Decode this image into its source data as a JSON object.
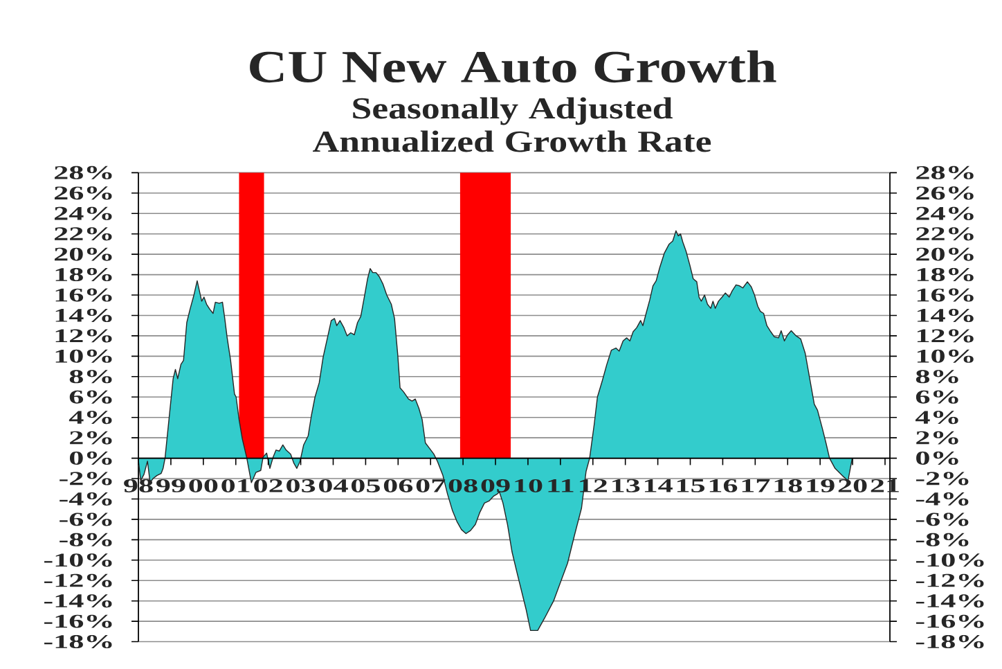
{
  "chart_data": {
    "type": "area",
    "title": "CU New Auto Growth",
    "subtitle": "Seasonally Adjusted Annualized Growth Rate",
    "x": [
      1998.0,
      1998.07,
      1998.17,
      1998.28,
      1998.36,
      1998.45,
      1998.57,
      1998.7,
      1998.76,
      1998.82,
      1998.97,
      1999.07,
      1999.14,
      1999.21,
      1999.31,
      1999.39,
      1999.49,
      1999.59,
      1999.71,
      1999.81,
      1999.88,
      1999.95,
      2000.02,
      2000.1,
      2000.2,
      2000.3,
      2000.37,
      2000.49,
      2000.59,
      2000.66,
      2000.73,
      2000.84,
      2000.96,
      2001.01,
      2001.1,
      2001.2,
      2001.34,
      2001.48,
      2001.62,
      2001.77,
      2001.84,
      2001.95,
      2002.05,
      2002.15,
      2002.24,
      2002.34,
      2002.45,
      2002.55,
      2002.69,
      2002.79,
      2002.88,
      2002.98,
      2003.09,
      2003.23,
      2003.33,
      2003.44,
      2003.57,
      2003.69,
      2003.83,
      2003.94,
      2004.04,
      2004.11,
      2004.21,
      2004.33,
      2004.43,
      2004.54,
      2004.65,
      2004.75,
      2004.85,
      2004.97,
      2005.06,
      2005.14,
      2005.22,
      2005.32,
      2005.42,
      2005.53,
      2005.65,
      2005.79,
      2005.89,
      2005.99,
      2006.06,
      2006.17,
      2006.32,
      2006.43,
      2006.53,
      2006.64,
      2006.74,
      2006.84,
      2006.96,
      2007.1,
      2007.21,
      2007.38,
      2007.52,
      2007.67,
      2007.81,
      2007.95,
      2008.09,
      2008.23,
      2008.38,
      2008.52,
      2008.66,
      2008.8,
      2008.95,
      2009.06,
      2009.12,
      2009.23,
      2009.37,
      2009.51,
      2009.66,
      2009.8,
      2009.94,
      2010.08,
      2010.3,
      2010.51,
      2010.79,
      2011.01,
      2011.22,
      2011.43,
      2011.65,
      2011.79,
      2011.9,
      2012.04,
      2012.14,
      2012.29,
      2012.43,
      2012.57,
      2012.71,
      2012.81,
      2012.93,
      2013.04,
      2013.14,
      2013.24,
      2013.35,
      2013.47,
      2013.54,
      2013.64,
      2013.75,
      2013.85,
      2013.95,
      2014.06,
      2014.2,
      2014.35,
      2014.46,
      2014.56,
      2014.63,
      2014.7,
      2014.77,
      2014.87,
      2014.99,
      2015.09,
      2015.2,
      2015.27,
      2015.34,
      2015.44,
      2015.53,
      2015.63,
      2015.7,
      2015.77,
      2015.87,
      2015.98,
      2016.08,
      2016.2,
      2016.29,
      2016.41,
      2016.52,
      2016.62,
      2016.76,
      2016.88,
      2016.98,
      2017.08,
      2017.16,
      2017.26,
      2017.36,
      2017.48,
      2017.59,
      2017.72,
      2017.8,
      2017.9,
      2018.0,
      2018.11,
      2018.26,
      2018.4,
      2018.54,
      2018.68,
      2018.82,
      2018.92,
      2019.07,
      2019.18,
      2019.29,
      2019.46,
      2019.68,
      2019.86,
      2019.93,
      2019.99
    ],
    "series": [
      {
        "color": "#33cccc",
        "values": [
          -0.2,
          -2.2,
          -1.6,
          -0.3,
          -2.4,
          -2.0,
          -1.7,
          -1.5,
          -1.0,
          0.0,
          4.7,
          7.8,
          8.7,
          7.8,
          9.2,
          9.6,
          13.3,
          14.6,
          16.0,
          17.4,
          16.4,
          15.4,
          15.8,
          15.1,
          14.6,
          14.2,
          15.3,
          15.2,
          15.3,
          13.7,
          11.9,
          9.6,
          6.3,
          6.0,
          3.8,
          1.9,
          0.0,
          -2.4,
          -1.4,
          -1.2,
          0.1,
          0.5,
          -1.0,
          0.1,
          0.8,
          0.7,
          1.3,
          0.8,
          0.4,
          -0.5,
          -1.0,
          -0.3,
          1.3,
          2.2,
          4.2,
          6.0,
          7.4,
          9.9,
          11.9,
          13.5,
          13.7,
          13.0,
          13.5,
          12.8,
          12.0,
          12.3,
          12.1,
          13.3,
          13.9,
          16.0,
          17.6,
          18.6,
          18.2,
          18.2,
          17.8,
          17.1,
          16.0,
          15.1,
          13.7,
          10.1,
          6.9,
          6.5,
          5.8,
          5.6,
          5.8,
          4.9,
          3.8,
          1.5,
          1.0,
          0.4,
          -0.3,
          -1.7,
          -3.5,
          -5.1,
          -6.2,
          -7.0,
          -7.4,
          -7.1,
          -6.5,
          -5.3,
          -4.4,
          -4.2,
          -3.7,
          -3.5,
          -3.3,
          -4.4,
          -6.5,
          -9.2,
          -11.2,
          -13.0,
          -14.8,
          -16.9,
          -16.9,
          -15.7,
          -14.0,
          -12.1,
          -10.3,
          -7.6,
          -4.9,
          -1.3,
          0.0,
          3.3,
          6.0,
          7.6,
          9.2,
          10.6,
          10.8,
          10.5,
          11.5,
          11.8,
          11.5,
          12.4,
          12.8,
          13.5,
          13.0,
          14.2,
          15.5,
          16.9,
          17.4,
          18.7,
          20.1,
          21.0,
          21.3,
          22.3,
          21.8,
          22.0,
          21.2,
          20.3,
          18.9,
          17.6,
          17.3,
          15.8,
          15.4,
          16.0,
          15.1,
          14.7,
          15.4,
          14.7,
          15.4,
          15.8,
          16.2,
          15.8,
          16.4,
          17.0,
          16.9,
          16.7,
          17.3,
          16.8,
          16.0,
          14.9,
          14.4,
          14.2,
          13.0,
          12.4,
          11.9,
          11.8,
          12.5,
          11.5,
          12.1,
          12.5,
          12.0,
          11.7,
          10.3,
          7.8,
          5.3,
          4.7,
          2.9,
          1.5,
          0.0,
          -1.0,
          -1.7,
          -2.2,
          -1.0,
          0.0
        ]
      }
    ],
    "xlim": [
      1998,
      2021.15
    ],
    "xticks": [
      {
        "value": 1998,
        "label": "98"
      },
      {
        "value": 1999,
        "label": "99"
      },
      {
        "value": 2000,
        "label": "00"
      },
      {
        "value": 2001,
        "label": "01"
      },
      {
        "value": 2002,
        "label": "02"
      },
      {
        "value": 2003,
        "label": "03"
      },
      {
        "value": 2004,
        "label": "04"
      },
      {
        "value": 2005,
        "label": "05"
      },
      {
        "value": 2006,
        "label": "06"
      },
      {
        "value": 2007,
        "label": "07"
      },
      {
        "value": 2008,
        "label": "08"
      },
      {
        "value": 2009,
        "label": "09"
      },
      {
        "value": 2010,
        "label": "10"
      },
      {
        "value": 2011,
        "label": "11"
      },
      {
        "value": 2012,
        "label": "12"
      },
      {
        "value": 2013,
        "label": "13"
      },
      {
        "value": 2014,
        "label": "14"
      },
      {
        "value": 2015,
        "label": "15"
      },
      {
        "value": 2016,
        "label": "16"
      },
      {
        "value": 2017,
        "label": "17"
      },
      {
        "value": 2018,
        "label": "18"
      },
      {
        "value": 2019,
        "label": "19"
      },
      {
        "value": 2020,
        "label": "20"
      },
      {
        "value": 2021,
        "label": "21"
      }
    ],
    "ylim": [
      -18,
      28
    ],
    "yticks": [
      {
        "value": -18,
        "label": "-18%"
      },
      {
        "value": -16,
        "label": "-16%"
      },
      {
        "value": -14,
        "label": "-14%"
      },
      {
        "value": -12,
        "label": "-12%"
      },
      {
        "value": -10,
        "label": "-10%"
      },
      {
        "value": -8,
        "label": "-8%"
      },
      {
        "value": -6,
        "label": "-6%"
      },
      {
        "value": -4,
        "label": "-4%"
      },
      {
        "value": -2,
        "label": "-2%"
      },
      {
        "value": 0,
        "label": "0%"
      },
      {
        "value": 2,
        "label": "2%"
      },
      {
        "value": 4,
        "label": "4%"
      },
      {
        "value": 6,
        "label": "6%"
      },
      {
        "value": 8,
        "label": "8%"
      },
      {
        "value": 10,
        "label": "10%"
      },
      {
        "value": 12,
        "label": "12%"
      },
      {
        "value": 14,
        "label": "14%"
      },
      {
        "value": 16,
        "label": "16%"
      },
      {
        "value": 18,
        "label": "18%"
      },
      {
        "value": 20,
        "label": "20%"
      },
      {
        "value": 22,
        "label": "22%"
      },
      {
        "value": 24,
        "label": "24%"
      },
      {
        "value": 26,
        "label": "26%"
      },
      {
        "value": 28,
        "label": "28%"
      }
    ],
    "y2lim": [
      -18,
      28
    ],
    "y2ticks": [
      {
        "value": -18,
        "label": "-18%"
      },
      {
        "value": -16,
        "label": "-16%"
      },
      {
        "value": -14,
        "label": "-14%"
      },
      {
        "value": -12,
        "label": "-12%"
      },
      {
        "value": -10,
        "label": "-10%"
      },
      {
        "value": -8,
        "label": "-8%"
      },
      {
        "value": -6,
        "label": "-6%"
      },
      {
        "value": -4,
        "label": "-4%"
      },
      {
        "value": -2,
        "label": "-2%"
      },
      {
        "value": 0,
        "label": "0%"
      },
      {
        "value": 2,
        "label": "2%"
      },
      {
        "value": 4,
        "label": "4%"
      },
      {
        "value": 6,
        "label": "6%"
      },
      {
        "value": 8,
        "label": "8%"
      },
      {
        "value": 10,
        "label": "10%"
      },
      {
        "value": 12,
        "label": "12%"
      },
      {
        "value": 14,
        "label": "14%"
      },
      {
        "value": 16,
        "label": "16%"
      },
      {
        "value": 18,
        "label": "18%"
      },
      {
        "value": 20,
        "label": "20%"
      },
      {
        "value": 22,
        "label": "22%"
      },
      {
        "value": 24,
        "label": "24%"
      },
      {
        "value": 26,
        "label": "26%"
      },
      {
        "value": 28,
        "label": "28%"
      }
    ],
    "bands": [
      {
        "axis": "x",
        "from": 2001.1,
        "to": 2001.87,
        "color": "#ff0000"
      },
      {
        "axis": "x",
        "from": 2007.91,
        "to": 2009.47,
        "color": "#ff0000"
      }
    ],
    "grid": "y"
  }
}
